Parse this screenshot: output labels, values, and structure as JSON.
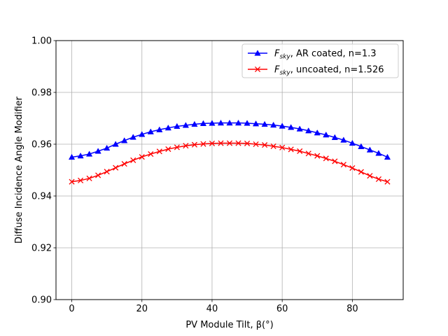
{
  "chart_data": {
    "type": "line",
    "xlabel": "PV Module Tilt, β(°)",
    "ylabel": "Diffuse Incidence Angle Modifier",
    "xlim": [
      -4.5,
      94.5
    ],
    "ylim": [
      0.9,
      1.0
    ],
    "x_ticks": [
      0,
      20,
      40,
      60,
      80
    ],
    "y_ticks": [
      0.9,
      0.92,
      0.94,
      0.96,
      0.98,
      1.0
    ],
    "x_tick_labels": [
      "0",
      "20",
      "40",
      "60",
      "80"
    ],
    "y_tick_labels": [
      "0.90",
      "0.92",
      "0.94",
      "0.96",
      "0.98",
      "1.00"
    ],
    "grid": true,
    "legend_position": "top-right",
    "x": [
      0,
      2.5,
      5,
      7.5,
      10,
      12.5,
      15,
      17.5,
      20,
      22.5,
      25,
      27.5,
      30,
      32.5,
      35,
      37.5,
      40,
      42.5,
      45,
      47.5,
      50,
      52.5,
      55,
      57.5,
      60,
      62.5,
      65,
      67.5,
      70,
      72.5,
      75,
      77.5,
      80,
      82.5,
      85,
      87.5,
      90
    ],
    "series": [
      {
        "name_main": "F",
        "name_sub": "sky",
        "name_rest": ", AR coated, n=1.3",
        "color": "#0000ff",
        "marker": "triangle",
        "values": [
          0.955,
          0.9555,
          0.9562,
          0.9573,
          0.9585,
          0.96,
          0.9614,
          0.9627,
          0.9638,
          0.9648,
          0.9656,
          0.9663,
          0.9669,
          0.9673,
          0.9677,
          0.968,
          0.9681,
          0.9682,
          0.9682,
          0.9682,
          0.9681,
          0.9679,
          0.9677,
          0.9674,
          0.967,
          0.9665,
          0.9659,
          0.9652,
          0.9644,
          0.9636,
          0.9626,
          0.9616,
          0.9604,
          0.9591,
          0.9578,
          0.9565,
          0.955
        ]
      },
      {
        "name_main": "F",
        "name_sub": "sky",
        "name_rest": ", uncoated, n=1.526",
        "color": "#ff0000",
        "marker": "x",
        "values": [
          0.9455,
          0.946,
          0.9468,
          0.948,
          0.9494,
          0.9509,
          0.9524,
          0.9538,
          0.9551,
          0.9562,
          0.9572,
          0.9581,
          0.9588,
          0.9594,
          0.9598,
          0.9601,
          0.9603,
          0.9604,
          0.9604,
          0.9604,
          0.9603,
          0.96,
          0.9597,
          0.9592,
          0.9587,
          0.958,
          0.9573,
          0.9564,
          0.9555,
          0.9545,
          0.9534,
          0.9521,
          0.9508,
          0.9493,
          0.9478,
          0.9465,
          0.9455
        ]
      }
    ]
  }
}
